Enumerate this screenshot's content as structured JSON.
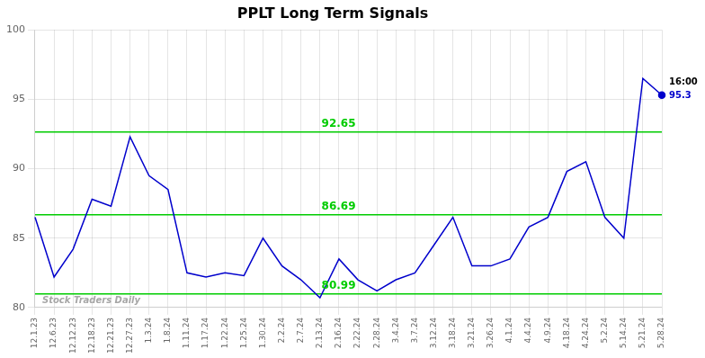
{
  "chart_data": {
    "type": "line",
    "title": "PPLT Long Term Signals",
    "categories": [
      "12.1.23",
      "12.6.23",
      "12.12.23",
      "12.18.23",
      "12.21.23",
      "12.27.23",
      "1.3.24",
      "1.8.24",
      "1.11.24",
      "1.17.24",
      "1.22.24",
      "1.25.24",
      "1.30.24",
      "2.2.24",
      "2.7.24",
      "2.13.24",
      "2.16.24",
      "2.22.24",
      "2.28.24",
      "3.4.24",
      "3.7.24",
      "3.12.24",
      "3.18.24",
      "3.21.24",
      "3.26.24",
      "4.1.24",
      "4.4.24",
      "4.9.24",
      "4.18.24",
      "4.24.24",
      "5.2.24",
      "5.14.24",
      "5.21.24",
      "5.28.24"
    ],
    "values": [
      86.5,
      82.2,
      84.2,
      87.8,
      87.3,
      92.3,
      89.5,
      88.5,
      82.5,
      82.2,
      82.5,
      82.3,
      85.0,
      83.0,
      82.0,
      80.7,
      83.5,
      82.0,
      81.2,
      82.0,
      82.5,
      84.5,
      86.5,
      83.0,
      83.0,
      83.5,
      85.8,
      86.5,
      89.8,
      90.5,
      86.5,
      85.0,
      96.5,
      95.3
    ],
    "color": "#0000cc",
    "hlines": [
      {
        "value": 92.65,
        "label": "92.65",
        "color": "#00cc00"
      },
      {
        "value": 86.69,
        "label": "86.69",
        "color": "#00cc00"
      },
      {
        "value": 80.99,
        "label": "80.99",
        "color": "#00cc00"
      }
    ],
    "annotations": [
      "16:00",
      "95.3"
    ],
    "watermark": "Stock Traders Daily",
    "ylim": [
      80,
      100
    ],
    "yticks": [
      80,
      85,
      90,
      95,
      100
    ],
    "grid": true
  }
}
